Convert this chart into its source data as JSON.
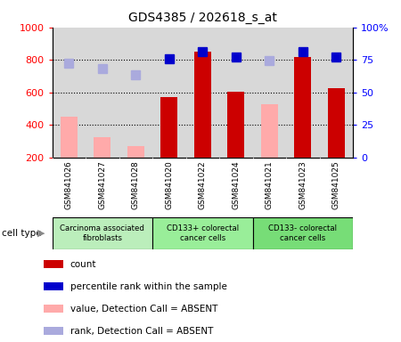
{
  "title": "GDS4385 / 202618_s_at",
  "samples": [
    "GSM841026",
    "GSM841027",
    "GSM841028",
    "GSM841020",
    "GSM841022",
    "GSM841024",
    "GSM841021",
    "GSM841023",
    "GSM841025"
  ],
  "count_values": [
    null,
    null,
    null,
    570,
    850,
    605,
    null,
    815,
    625
  ],
  "count_absent": [
    450,
    325,
    270,
    null,
    null,
    null,
    525,
    null,
    null
  ],
  "rank_present": [
    null,
    null,
    null,
    805,
    848,
    815,
    null,
    848,
    820
  ],
  "rank_absent": [
    780,
    748,
    710,
    null,
    null,
    null,
    795,
    null,
    null
  ],
  "cell_groups": [
    {
      "label": "Carcinoma associated\nfibroblasts",
      "start": 0,
      "end": 3,
      "color": "#bbeebb"
    },
    {
      "label": "CD133+ colorectal\ncancer cells",
      "start": 3,
      "end": 6,
      "color": "#99ee99"
    },
    {
      "label": "CD133- colorectal\ncancer cells",
      "start": 6,
      "end": 9,
      "color": "#77dd77"
    }
  ],
  "count_color": "#cc0000",
  "count_absent_color": "#ffaaaa",
  "rank_present_color": "#0000cc",
  "rank_absent_color": "#aaaadd",
  "ylim_left": [
    200,
    1000
  ],
  "ylim_right": [
    0,
    100
  ],
  "yticks_left": [
    200,
    400,
    600,
    800,
    1000
  ],
  "yticks_right": [
    0,
    25,
    50,
    75,
    100
  ],
  "bar_width": 0.5,
  "marker_size": 7,
  "bg_color": "#d8d8d8",
  "legend_items": [
    {
      "label": "count",
      "color": "#cc0000"
    },
    {
      "label": "percentile rank within the sample",
      "color": "#0000cc"
    },
    {
      "label": "value, Detection Call = ABSENT",
      "color": "#ffaaaa"
    },
    {
      "label": "rank, Detection Call = ABSENT",
      "color": "#aaaadd"
    }
  ]
}
